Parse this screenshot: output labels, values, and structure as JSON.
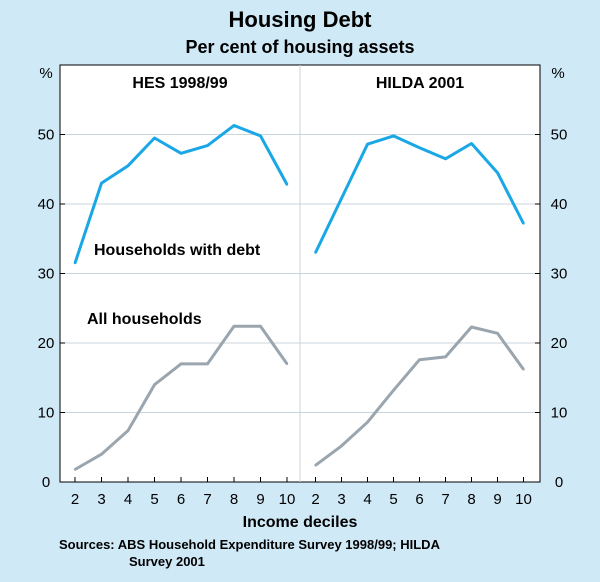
{
  "chart_data": {
    "type": "line",
    "title": "Housing Debt",
    "subtitle": "Per cent of housing assets",
    "xlabel": "Income deciles",
    "y_unit_label": "%",
    "ylim": [
      0,
      60
    ],
    "yticks": [
      0,
      10,
      20,
      30,
      40,
      50
    ],
    "categories": [
      "2",
      "3",
      "4",
      "5",
      "6",
      "7",
      "8",
      "9",
      "10"
    ],
    "panels": [
      {
        "title": "HES 1998/99",
        "series": [
          {
            "name": "Households with debt",
            "color": "#1aa7e6",
            "values": [
              31.5,
              43.0,
              45.5,
              49.5,
              47.3,
              48.4,
              51.3,
              49.8,
              42.8
            ]
          },
          {
            "name": "All households",
            "color": "#9aa5ae",
            "values": [
              1.8,
              4.0,
              7.4,
              14.0,
              17.0,
              17.0,
              22.4,
              22.4,
              17.0
            ]
          }
        ]
      },
      {
        "title": "HILDA 2001",
        "series": [
          {
            "name": "Households with debt",
            "color": "#1aa7e6",
            "values": [
              33.0,
              40.8,
              48.6,
              49.8,
              48.1,
              46.5,
              48.7,
              44.5,
              37.2
            ]
          },
          {
            "name": "All households",
            "color": "#9aa5ae",
            "values": [
              2.4,
              5.2,
              8.6,
              13.2,
              17.6,
              18.0,
              22.3,
              21.4,
              16.2
            ]
          }
        ]
      }
    ],
    "series_labels": {
      "households_with_debt": "Households with debt",
      "all_households": "All households"
    },
    "source": "Sources: ABS Household Expenditure Survey 1998/99; HILDA",
    "source_line2": "Survey 2001"
  }
}
